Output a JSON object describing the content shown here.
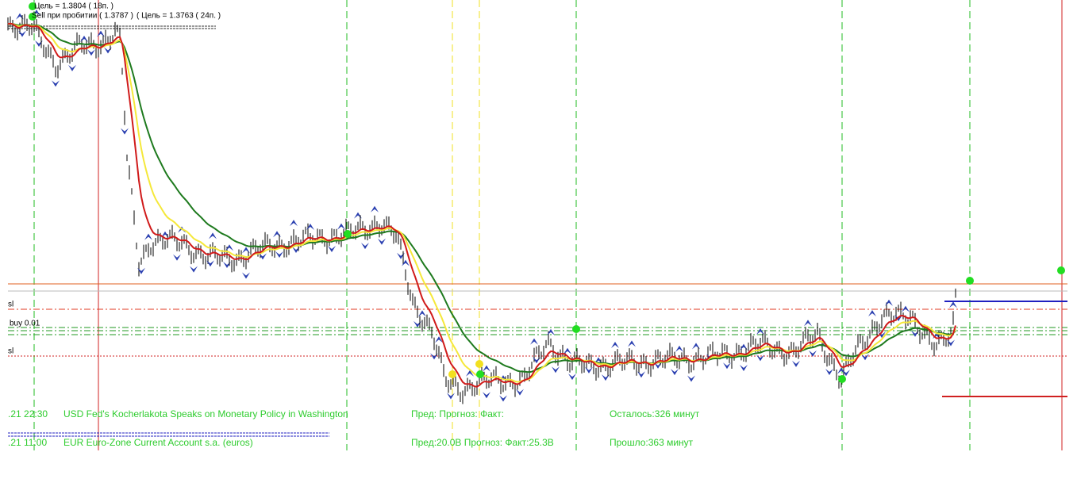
{
  "top_info": {
    "target_line": "Цель = 1.3804 ( 18п. )",
    "sell_line": "Sell  при пробитии ( 1.3787 )",
    "sell_target": "( Цель = 1.3763 ( 24п. )"
  },
  "levels": {
    "sl_upper": "sl",
    "buy": "buy 0.01",
    "sl_lower": "sl"
  },
  "news": [
    {
      "time": ".21 22:30",
      "event": "USD Fed's Kocherlakota Speaks on Monetary Policy in Washington",
      "values": "Пред: Прогноз: Факт:",
      "timer": "Осталось:326 минут"
    },
    {
      "time": ".21 11:00",
      "event": "EUR Euro-Zone Current Account s.a. (euros)",
      "values": "Пред:20.0B Прогноз: Факт:25.3B",
      "timer": "Прошло:363 минут"
    }
  ]
}
